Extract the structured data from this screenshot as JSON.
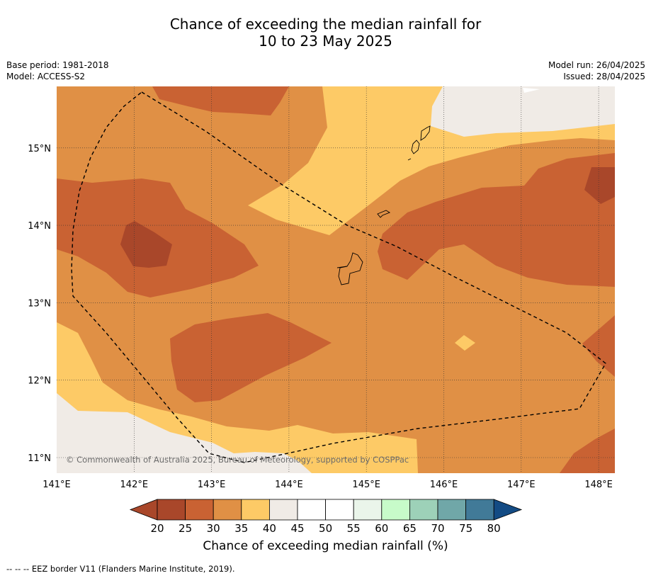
{
  "title_line1": "Chance of exceeding the median rainfall for",
  "title_line2": "10 to 23 May 2025",
  "base_period": "Base period: 1981-2018",
  "model": "Model: ACCESS-S2",
  "model_run": "Model run: 26/04/2025",
  "issued": "Issued: 28/04/2025",
  "copyright": "© Commonwealth of Australia 2025, Bureau of Meteorology, supported by COSPPac",
  "lon_labels": [
    "141°E",
    "142°E",
    "143°E",
    "144°E",
    "145°E",
    "146°E",
    "147°E",
    "148°E"
  ],
  "lat_labels": [
    "15°N",
    "14°N",
    "13°N",
    "12°N",
    "11°N"
  ],
  "colorbar": {
    "title": "Chance of exceeding median rainfall (%)",
    "ticks": [
      "20",
      "25",
      "30",
      "35",
      "40",
      "45",
      "50",
      "55",
      "60",
      "65",
      "70",
      "75",
      "80"
    ],
    "colors": [
      "#a9472a",
      "#a9472a",
      "#c96233",
      "#e09045",
      "#fdca66",
      "#f0ebe6",
      "#ffffff",
      "#ffffff",
      "#eaf5ea",
      "#c7fbc9",
      "#9dd1b8",
      "#70a7a8",
      "#417a98",
      "#134b84"
    ]
  },
  "legend_note": "--  --  -- EEZ border V11 (Flanders Marine Institute, 2019).",
  "colors": {
    "c20": "#a9472a",
    "c25": "#c96233",
    "c30": "#e09045",
    "c35": "#fdca66",
    "c40": "#f0ebe6"
  }
}
